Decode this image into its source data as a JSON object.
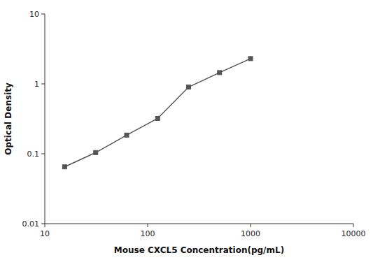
{
  "chart_data": {
    "type": "line",
    "x": [
      15.6,
      31.25,
      62.5,
      125,
      250,
      500,
      1000
    ],
    "values": [
      0.065,
      0.104,
      0.185,
      0.32,
      0.9,
      1.45,
      2.3
    ],
    "color": "#555555",
    "marker": "square",
    "xlabel": "Mouse CXCL5 Concentration(pg/mL)",
    "ylabel": "Optical Density",
    "log": true,
    "xlim": [
      10,
      10000
    ],
    "ylim": [
      0.01,
      10
    ],
    "xticks": [
      10,
      100,
      1000,
      10000
    ],
    "yticks": [
      0.01,
      0.1,
      1,
      10
    ]
  }
}
